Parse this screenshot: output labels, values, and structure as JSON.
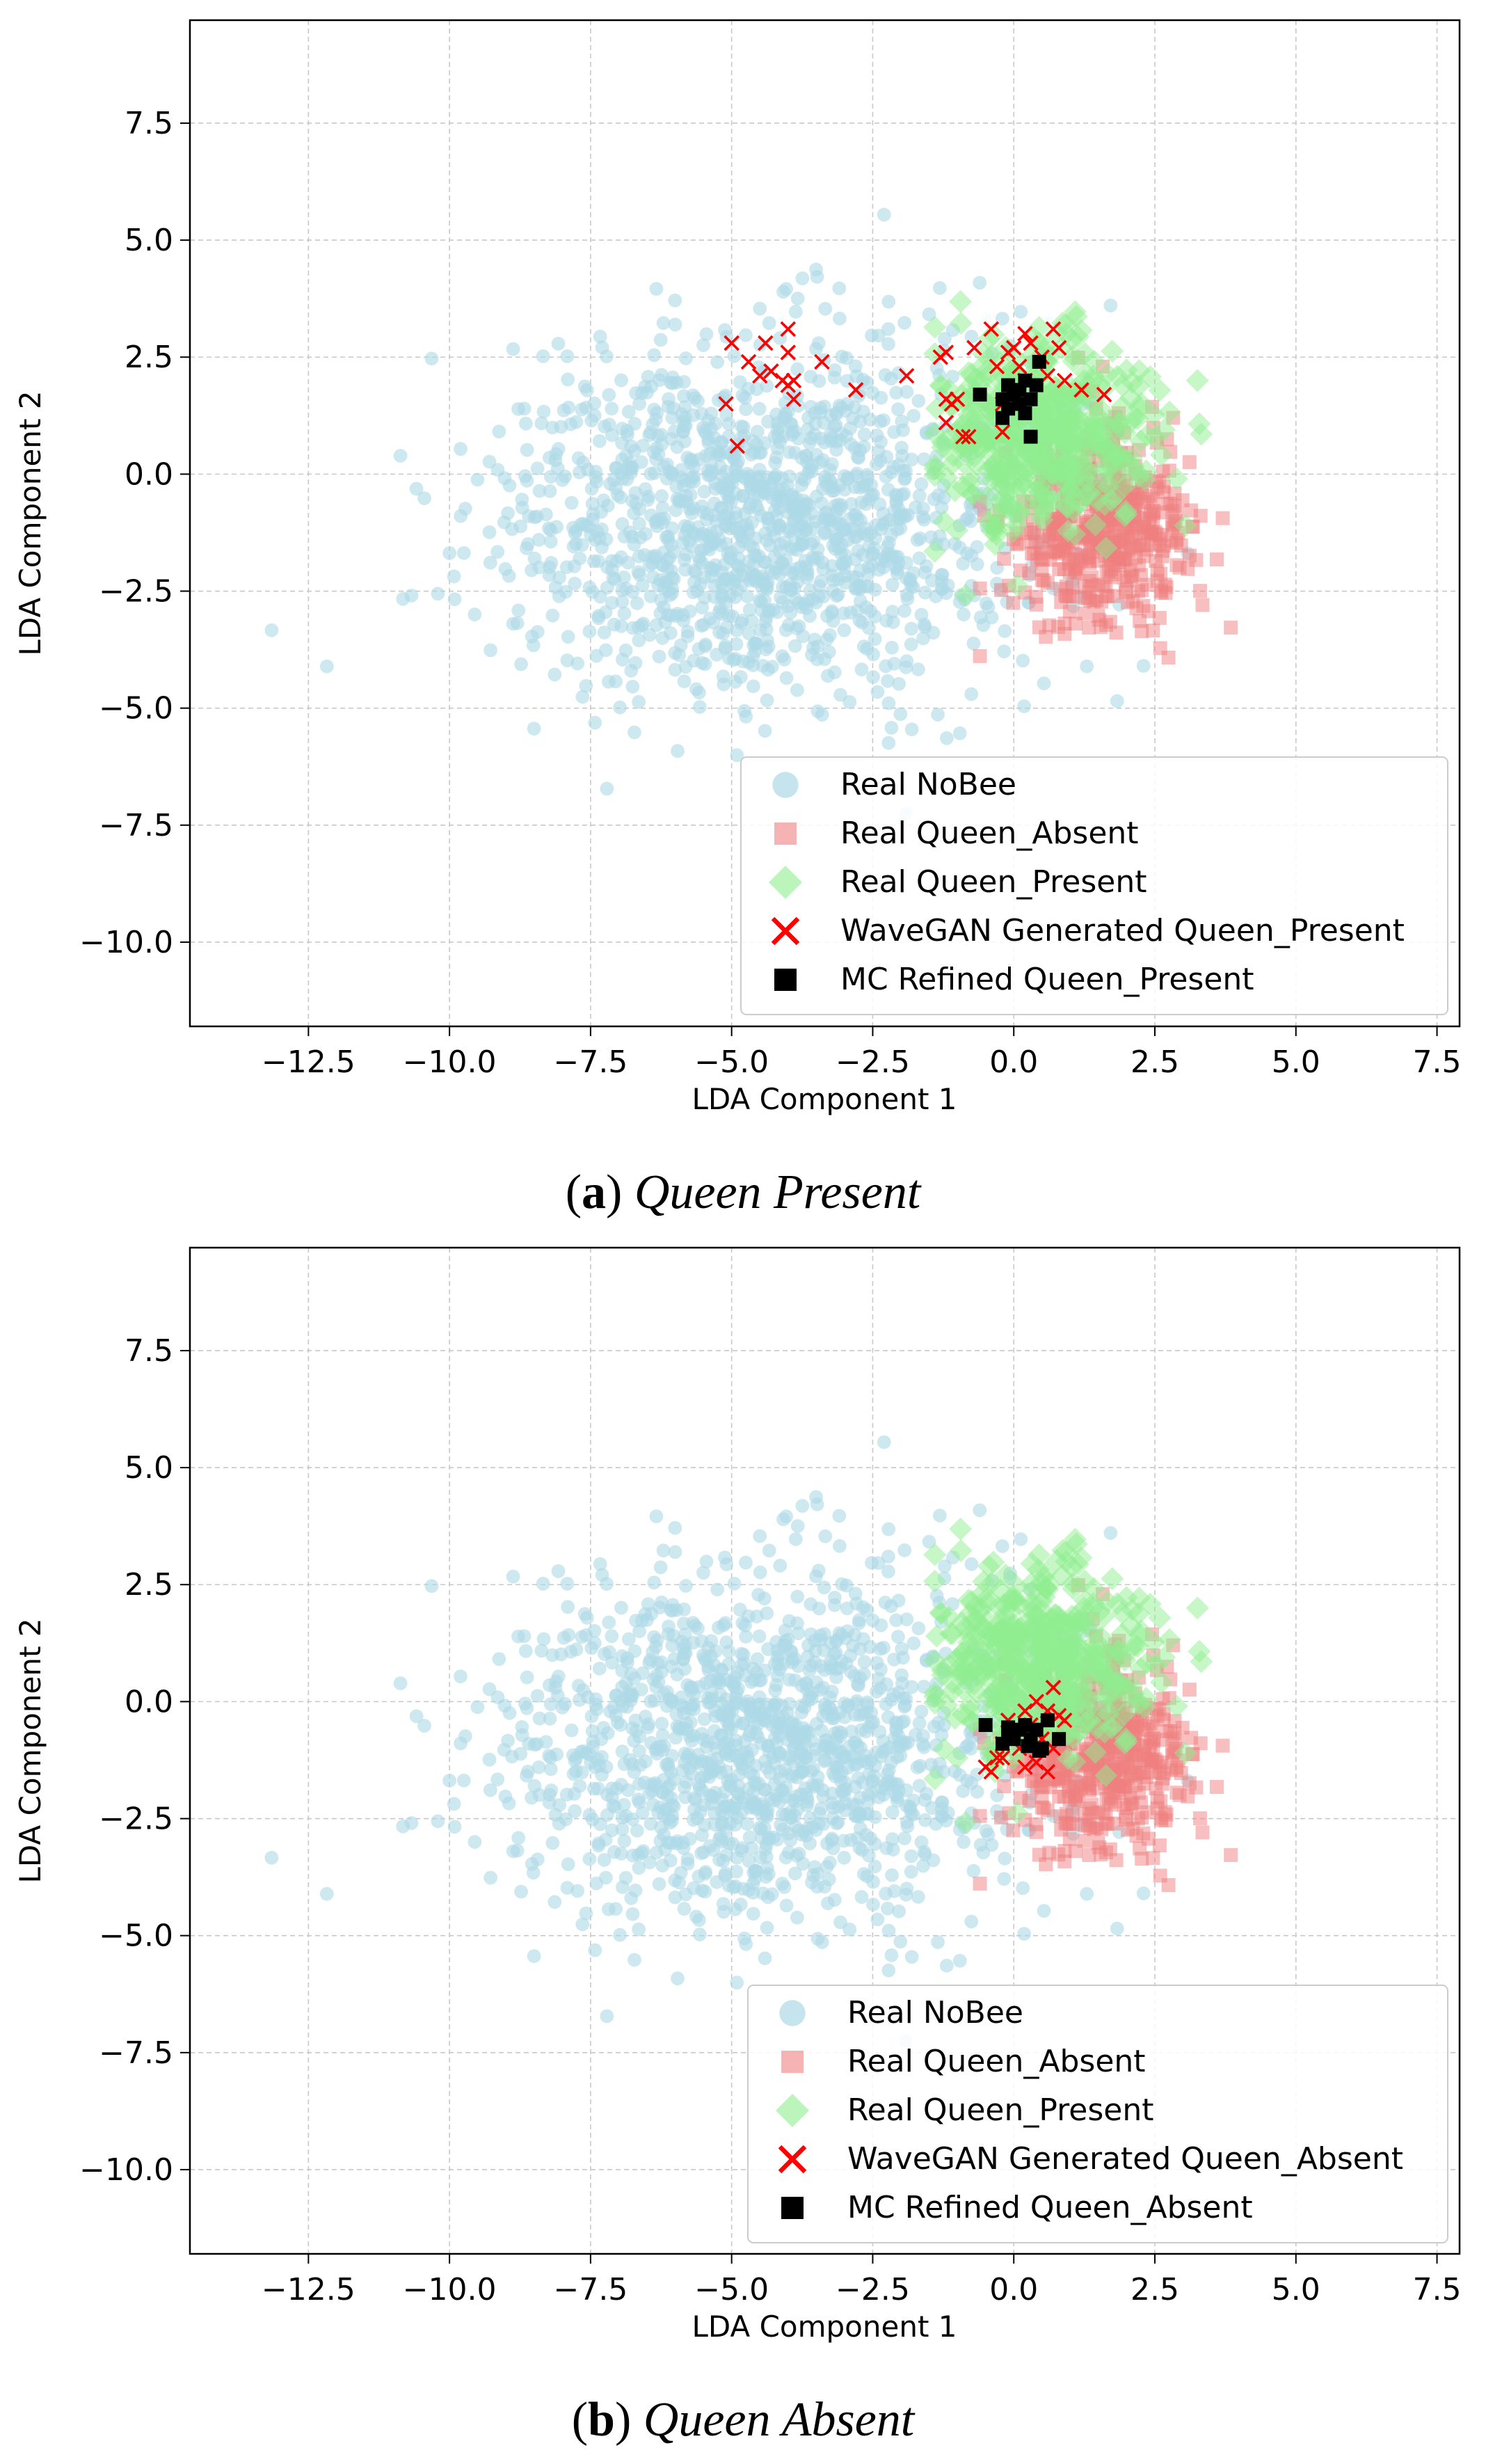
{
  "colors": {
    "nobee": "#add8e6",
    "absent": "#f08080",
    "present": "#90ee90",
    "wavegan": "#ff0000",
    "refined": "#000000",
    "grid": "#c8c8c8"
  },
  "chart_data": [
    {
      "type": "scatter",
      "panel": "a",
      "xlabel": "LDA Component 1",
      "ylabel": "LDA Component 2",
      "xlim": [
        -14.6,
        7.9
      ],
      "ylim": [
        -11.8,
        9.7
      ],
      "xticks": [
        -12.5,
        -10.0,
        -7.5,
        -5.0,
        -2.5,
        0.0,
        2.5,
        5.0,
        7.5
      ],
      "xtick_labels": [
        "−12.5",
        "−10.0",
        "−7.5",
        "−5.0",
        "−2.5",
        "0.0",
        "2.5",
        "5.0",
        "7.5"
      ],
      "yticks": [
        7.5,
        5.0,
        2.5,
        0.0,
        -2.5,
        -5.0,
        -7.5,
        -10.0
      ],
      "ytick_labels": [
        "7.5",
        "5.0",
        "2.5",
        "0.0",
        "−2.5",
        "−5.0",
        "−7.5",
        "−10.0"
      ],
      "grid": true,
      "legend_position": "lower-right",
      "caption_letter": "a",
      "caption_text": "Queen Present",
      "series": [
        {
          "name": "Real NoBee",
          "marker": "circle",
          "cluster": {
            "center": [
              -4.5,
              -1.0
            ],
            "spread": [
              2.3,
              1.9
            ],
            "count": 1400
          }
        },
        {
          "name": "Real Queen_Absent",
          "marker": "square",
          "cluster": {
            "center": [
              1.5,
              -1.2
            ],
            "spread": [
              0.8,
              1.0
            ],
            "count": 500
          }
        },
        {
          "name": "Real Queen_Present",
          "marker": "diamond",
          "cluster": {
            "center": [
              0.5,
              0.9
            ],
            "spread": [
              0.9,
              1.0
            ],
            "count": 500
          }
        },
        {
          "name": "WaveGAN Generated Queen_Present",
          "marker": "x",
          "points": [
            [
              -5.0,
              2.8
            ],
            [
              -4.7,
              2.4
            ],
            [
              -4.4,
              2.8
            ],
            [
              -4.0,
              3.1
            ],
            [
              -4.3,
              2.2
            ],
            [
              -4.1,
              2.0
            ],
            [
              -4.0,
              1.9
            ],
            [
              -3.9,
              2.0
            ],
            [
              -4.0,
              2.6
            ],
            [
              -3.9,
              1.6
            ],
            [
              -4.5,
              2.1
            ],
            [
              -5.1,
              1.5
            ],
            [
              -4.9,
              0.6
            ],
            [
              -3.4,
              2.4
            ],
            [
              -2.8,
              1.8
            ],
            [
              -1.9,
              2.1
            ],
            [
              -1.3,
              2.5
            ],
            [
              -1.2,
              2.6
            ],
            [
              -1.2,
              1.6
            ],
            [
              -1.1,
              1.5
            ],
            [
              -1.0,
              1.6
            ],
            [
              -0.8,
              0.8
            ],
            [
              -0.7,
              2.7
            ],
            [
              -0.4,
              3.1
            ],
            [
              -0.3,
              2.3
            ],
            [
              -0.2,
              1.5
            ],
            [
              -0.1,
              2.6
            ],
            [
              0.0,
              2.7
            ],
            [
              0.1,
              2.3
            ],
            [
              0.2,
              3.0
            ],
            [
              0.3,
              2.8
            ],
            [
              0.5,
              2.5
            ],
            [
              0.6,
              2.1
            ],
            [
              0.7,
              3.1
            ],
            [
              0.8,
              2.7
            ],
            [
              0.9,
              2.0
            ],
            [
              1.2,
              1.8
            ],
            [
              1.6,
              1.7
            ],
            [
              -1.2,
              1.1
            ],
            [
              -0.9,
              0.8
            ],
            [
              -0.2,
              0.9
            ],
            [
              0.2,
              2.0
            ]
          ]
        },
        {
          "name": "MC Refined Queen_Present",
          "marker": "filled-square",
          "points": [
            [
              -0.6,
              1.7
            ],
            [
              -0.2,
              1.6
            ],
            [
              -0.2,
              1.2
            ],
            [
              -0.1,
              1.4
            ],
            [
              0.1,
              1.5
            ],
            [
              0.2,
              1.3
            ],
            [
              0.3,
              1.6
            ],
            [
              0.4,
              1.9
            ],
            [
              0.45,
              2.4
            ],
            [
              0.3,
              0.8
            ],
            [
              0.0,
              1.7
            ],
            [
              0.2,
              2.0
            ],
            [
              -0.1,
              1.9
            ],
            [
              0.1,
              1.8
            ]
          ]
        }
      ]
    },
    {
      "type": "scatter",
      "panel": "b",
      "xlabel": "LDA Component 1",
      "ylabel": "LDA Component 2",
      "xlim": [
        -14.6,
        7.9
      ],
      "ylim": [
        -11.8,
        9.7
      ],
      "xticks": [
        -12.5,
        -10.0,
        -7.5,
        -5.0,
        -2.5,
        0.0,
        2.5,
        5.0,
        7.5
      ],
      "xtick_labels": [
        "−12.5",
        "−10.0",
        "−7.5",
        "−5.0",
        "−2.5",
        "0.0",
        "2.5",
        "5.0",
        "7.5"
      ],
      "yticks": [
        7.5,
        5.0,
        2.5,
        0.0,
        -2.5,
        -5.0,
        -7.5,
        -10.0
      ],
      "ytick_labels": [
        "7.5",
        "5.0",
        "2.5",
        "0.0",
        "−2.5",
        "−5.0",
        "−7.5",
        "−10.0"
      ],
      "grid": true,
      "legend_position": "lower-right",
      "caption_letter": "b",
      "caption_text": "Queen Absent",
      "series": [
        {
          "name": "Real NoBee",
          "marker": "circle",
          "cluster": {
            "center": [
              -4.5,
              -1.0
            ],
            "spread": [
              2.3,
              1.9
            ],
            "count": 1400
          }
        },
        {
          "name": "Real Queen_Absent",
          "marker": "square",
          "cluster": {
            "center": [
              1.5,
              -1.2
            ],
            "spread": [
              0.8,
              1.0
            ],
            "count": 500
          }
        },
        {
          "name": "Real Queen_Present",
          "marker": "diamond",
          "cluster": {
            "center": [
              0.5,
              0.9
            ],
            "spread": [
              0.9,
              1.0
            ],
            "count": 500
          }
        },
        {
          "name": "WaveGAN Generated Queen_Absent",
          "marker": "x",
          "points": [
            [
              -0.5,
              -1.4
            ],
            [
              -0.4,
              -1.5
            ],
            [
              -0.3,
              -1.2
            ],
            [
              -0.2,
              -0.9
            ],
            [
              -0.1,
              -0.4
            ],
            [
              0.0,
              -0.7
            ],
            [
              0.1,
              -1.0
            ],
            [
              0.2,
              -1.4
            ],
            [
              0.3,
              -0.5
            ],
            [
              0.4,
              0.0
            ],
            [
              0.5,
              -0.8
            ],
            [
              0.6,
              -1.5
            ],
            [
              0.7,
              0.3
            ],
            [
              0.8,
              -0.3
            ],
            [
              0.9,
              -0.4
            ],
            [
              0.7,
              -1.0
            ],
            [
              0.2,
              -0.2
            ],
            [
              -0.2,
              -1.2
            ],
            [
              0.4,
              -1.3
            ],
            [
              0.6,
              -0.2
            ]
          ]
        },
        {
          "name": "MC Refined Queen_Absent",
          "marker": "filled-square",
          "points": [
            [
              -0.5,
              -0.5
            ],
            [
              -0.2,
              -0.9
            ],
            [
              -0.1,
              -0.7
            ],
            [
              0.0,
              -0.8
            ],
            [
              0.1,
              -0.6
            ],
            [
              0.2,
              -0.5
            ],
            [
              0.3,
              -0.8
            ],
            [
              0.4,
              -0.6
            ],
            [
              0.5,
              -1.0
            ],
            [
              0.6,
              -0.4
            ],
            [
              0.8,
              -0.8
            ],
            [
              0.45,
              -1.05
            ],
            [
              -0.1,
              -0.55
            ],
            [
              0.25,
              -0.95
            ]
          ]
        }
      ]
    }
  ]
}
